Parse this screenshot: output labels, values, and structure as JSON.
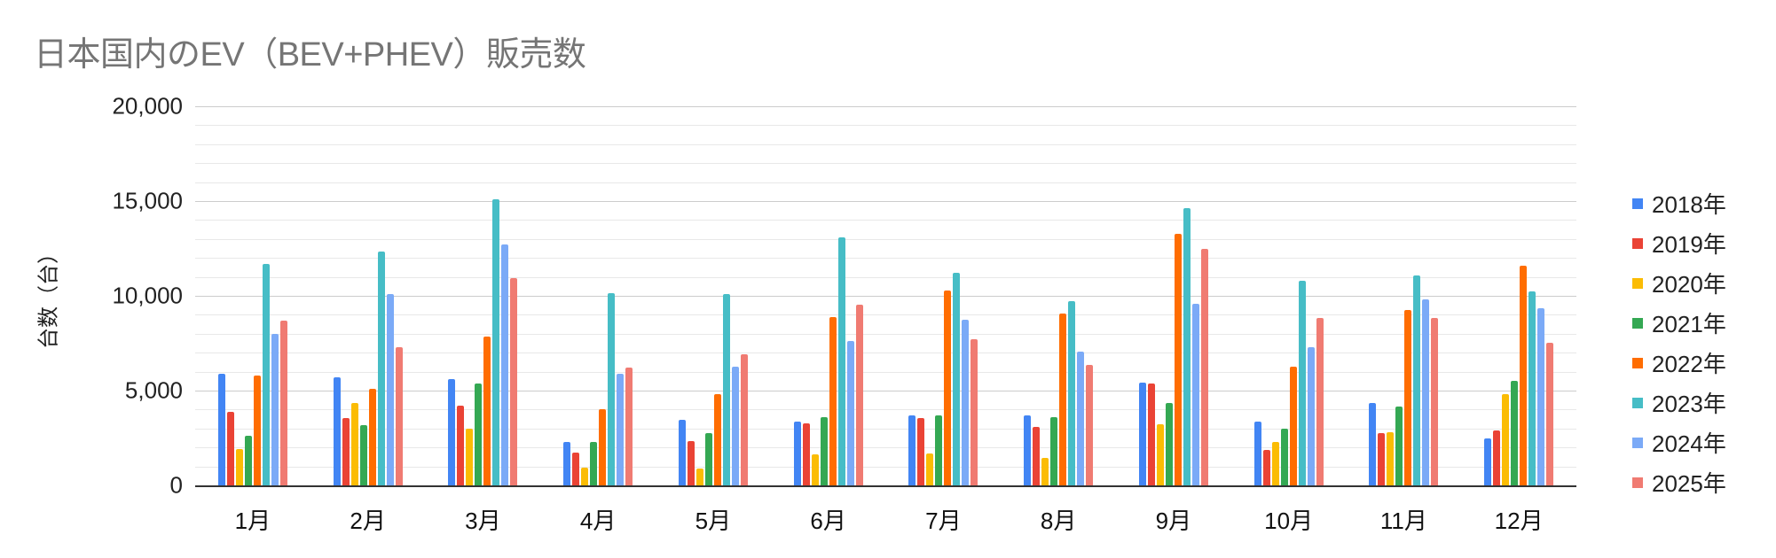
{
  "chart_data": {
    "type": "bar",
    "title": "日本国内のEV（BEV+PHEV）販売数",
    "xlabel": "",
    "ylabel": "台数（台）",
    "ylim": [
      0,
      20000
    ],
    "yticks": [
      "0",
      "5,000",
      "10,000",
      "15,000",
      "20,000"
    ],
    "ytick_values": [
      0,
      5000,
      10000,
      15000,
      20000
    ],
    "grid": true,
    "minor_grid_step": 1000,
    "legend_position": "right",
    "categories": [
      "1月",
      "2月",
      "3月",
      "4月",
      "5月",
      "6月",
      "7月",
      "8月",
      "9月",
      "10月",
      "11月",
      "12月"
    ],
    "series": [
      {
        "name": "2018年",
        "color": "#4285f4",
        "values": [
          5900,
          5720,
          5630,
          2270,
          3440,
          3350,
          3680,
          3680,
          5400,
          3350,
          4330,
          2460
        ]
      },
      {
        "name": "2019年",
        "color": "#ea4335",
        "values": [
          3860,
          3540,
          4220,
          1710,
          2320,
          3260,
          3540,
          3070,
          5360,
          1860,
          2740,
          2880
        ]
      },
      {
        "name": "2020年",
        "color": "#fbbc04",
        "values": [
          1930,
          4330,
          3010,
          920,
          870,
          1620,
          1670,
          1430,
          3210,
          2280,
          2790,
          4800
        ]
      },
      {
        "name": "2021年",
        "color": "#34a853",
        "values": [
          2600,
          3160,
          5360,
          2270,
          2740,
          3580,
          3680,
          3580,
          4330,
          2980,
          4140,
          5500
        ]
      },
      {
        "name": "2022年",
        "color": "#ff6d01",
        "values": [
          5780,
          5080,
          7840,
          4000,
          4800,
          8860,
          10270,
          9070,
          13260,
          6250,
          9240,
          11570
        ]
      },
      {
        "name": "2023年",
        "color": "#46bdc6",
        "values": [
          11700,
          12350,
          15100,
          10120,
          10080,
          13070,
          11200,
          9720,
          14610,
          10780,
          11060,
          10220
        ]
      },
      {
        "name": "2024年",
        "color": "#7baaf7",
        "values": [
          8000,
          10080,
          12730,
          5870,
          6250,
          7600,
          8720,
          7040,
          9560,
          7280,
          9800,
          9330
        ]
      },
      {
        "name": "2025年",
        "color": "#f07b72",
        "values": [
          8680,
          7310,
          10950,
          6200,
          6900,
          9520,
          7700,
          6340,
          12500,
          8820,
          8820,
          7510
        ]
      }
    ]
  }
}
